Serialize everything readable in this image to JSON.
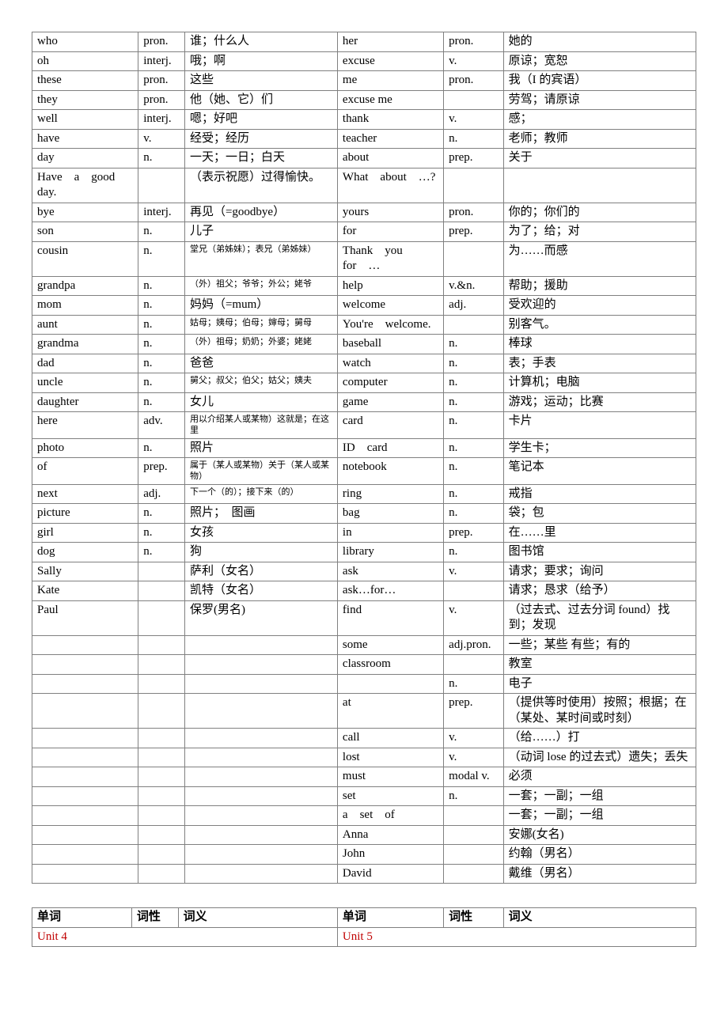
{
  "table1": {
    "rows": [
      {
        "wl": "who",
        "pl": "pron.",
        "dl": "谁；什么人",
        "wr": "her",
        "pr": "pron.",
        "dr": "她的"
      },
      {
        "wl": "oh",
        "pl": "interj.",
        "dl": "哦；啊",
        "wr": "excuse",
        "pr": "v.",
        "dr": "原谅；宽恕"
      },
      {
        "wl": "these",
        "pl": "pron.",
        "dl": "这些",
        "wr": "me",
        "pr": "pron.",
        "dr": "我（I 的宾语）"
      },
      {
        "wl": "they",
        "pl": "pron.",
        "dl": "他（她、它）们",
        "wr": "excuse me",
        "pr": "",
        "dr": "劳驾；请原谅"
      },
      {
        "wl": "well",
        "pl": "interj.",
        "dl": "嗯；好吧",
        "wr": "thank",
        "pr": "v.",
        "dr": "感；"
      },
      {
        "wl": "have",
        "pl": "v.",
        "dl": "经受；经历",
        "wr": "teacher",
        "pr": "n.",
        "dr": "老师；教师"
      },
      {
        "wl": "day",
        "pl": "n.",
        "dl": "一天；一日；白天",
        "wr": "about",
        "pr": "prep.",
        "dr": "关于"
      },
      {
        "wl": "Have　a　good　day.",
        "pl": "",
        "dl": "（表示祝愿）过得愉快。",
        "wr": "What　about　…?",
        "pr": "",
        "dr": ""
      },
      {
        "wl": "bye",
        "pl": "interj.",
        "dl": "再见（=goodbye）",
        "wr": "yours",
        "pr": "pron.",
        "dr": "你的；你们的"
      },
      {
        "wl": "son",
        "pl": "n.",
        "dl": "儿子",
        "wr": "for",
        "pr": "prep.",
        "dr": "为了；给；对"
      },
      {
        "wl": "cousin",
        "pl": "n.",
        "dl": "堂兄（弟姊妹）；表兄（弟姊妹）",
        "dl_small": true,
        "wr": "Thank　you　for　…",
        "pr": "",
        "dr": "为……而感"
      },
      {
        "wl": "grandpa",
        "pl": "n.",
        "dl": "（外）祖父；爷爷；外公；姥爷",
        "dl_small": true,
        "wr": "help",
        "pr": "v.&n.",
        "dr": "帮助；援助"
      },
      {
        "wl": "mom",
        "pl": "n.",
        "dl": "妈妈（=mum）",
        "wr": "welcome",
        "pr": "adj.",
        "dr": "受欢迎的"
      },
      {
        "wl": "aunt",
        "pl": "n.",
        "dl": "姑母；姨母；伯母；婶母；舅母",
        "dl_small": true,
        "wr": "You're　welcome.",
        "pr": "",
        "dr": "别客气。"
      },
      {
        "wl": "grandma",
        "pl": "n.",
        "dl": "（外）祖母；奶奶；外婆；姥姥",
        "dl_small": true,
        "wr": "baseball",
        "pr": "n.",
        "dr": "棒球"
      },
      {
        "wl": "dad",
        "pl": "n.",
        "dl": "爸爸",
        "wr": "watch",
        "pr": "n.",
        "dr": "表；手表"
      },
      {
        "wl": "uncle",
        "pl": "n.",
        "dl": "舅父；叔父；伯父；姑父；姨夫",
        "dl_small": true,
        "wr": "computer",
        "pr": "n.",
        "dr": "计算机；电脑"
      },
      {
        "wl": "daughter",
        "pl": "n.",
        "dl": "女儿",
        "wr": "game",
        "pr": "n.",
        "dr": "游戏；运动；比赛"
      },
      {
        "wl": "here",
        "pl": "adv.",
        "dl": "用以介绍某人或某物）这就是；在这里",
        "dl_small": true,
        "wr": "card",
        "pr": "n.",
        "dr": "卡片"
      },
      {
        "wl": "photo",
        "pl": "n.",
        "dl": "照片",
        "wr": "ID　card",
        "pr": "n.",
        "dr": "学生卡；"
      },
      {
        "wl": "of",
        "pl": "prep.",
        "dl": "属于（某人或某物）关于（某人或某物）",
        "dl_small": true,
        "wr": "notebook",
        "pr": "n.",
        "dr": "笔记本"
      },
      {
        "wl": "next",
        "pl": "adj.",
        "dl": "下一个（的）；接下来（的）",
        "dl_small": true,
        "wr": "ring",
        "pr": "n.",
        "dr": "戒指"
      },
      {
        "wl": "picture",
        "pl": "n.",
        "dl": "照片；　图画",
        "wr": "bag",
        "pr": "n.",
        "dr": "袋；包"
      },
      {
        "wl": "girl",
        "pl": "n.",
        "dl": "女孩",
        "wr": "in",
        "pr": "prep.",
        "dr": "在……里"
      },
      {
        "wl": "dog",
        "pl": "n.",
        "dl": "狗",
        "wr": "library",
        "pr": "n.",
        "dr": "图书馆"
      },
      {
        "wl": "Sally",
        "pl": "",
        "dl": "萨利（女名）",
        "wr": "ask",
        "pr": "v.",
        "dr": "请求；要求；询问"
      },
      {
        "wl": "Kate",
        "pl": "",
        "dl": "凯特（女名）",
        "wr": "ask…for…",
        "pr": "",
        "dr": "请求；恳求（给予）"
      },
      {
        "wl": "Paul",
        "pl": "",
        "dl": "保罗(男名)",
        "wr": "find",
        "pr": "v.",
        "dr": "（过去式、过去分词 found）找到；发现"
      },
      {
        "wl": "",
        "pl": "",
        "dl": "",
        "wr": "some",
        "pr": "adj.pron.",
        "dr": "一些；某些 有些；有的"
      },
      {
        "wl": "",
        "pl": "",
        "dl": "",
        "wr": "classroom",
        "pr": "",
        "dr": "教室"
      },
      {
        "wl": "",
        "pl": "",
        "dl": "",
        "wr": "",
        "pr": "n.",
        "dr": "电子"
      },
      {
        "wl": "",
        "pl": "",
        "dl": "",
        "wr": "at",
        "pr": "prep.",
        "dr": "（提供等时使用）按照；根据；在（某处、某时间或时刻）"
      },
      {
        "wl": "",
        "pl": "",
        "dl": "",
        "wr": "call",
        "pr": "v.",
        "dr": "（给……）打"
      },
      {
        "wl": "",
        "pl": "",
        "dl": "",
        "wr": "lost",
        "pr": "v.",
        "dr": "（动词 lose 的过去式）遗失；丢失"
      },
      {
        "wl": "",
        "pl": "",
        "dl": "",
        "wr": "must",
        "pr": "modal v.",
        "dr": "必须"
      },
      {
        "wl": "",
        "pl": "",
        "dl": "",
        "wr": "set",
        "pr": "n.",
        "dr": "一套；一副；一组"
      },
      {
        "wl": "",
        "pl": "",
        "dl": "",
        "wr": "a　set　of",
        "pr": "",
        "dr": "一套；一副；一组"
      },
      {
        "wl": "",
        "pl": "",
        "dl": "",
        "wr": "Anna",
        "pr": "",
        "dr": "安娜(女名)"
      },
      {
        "wl": "",
        "pl": "",
        "dl": "",
        "wr": "John",
        "pr": "",
        "dr": "约翰（男名）"
      },
      {
        "wl": "",
        "pl": "",
        "dl": "",
        "wr": "David",
        "pr": "",
        "dr": "戴维（男名）"
      }
    ]
  },
  "table2": {
    "header": {
      "wl": "单词",
      "pl": "词性",
      "dl": "词义",
      "wr": "单词",
      "pr": "词性",
      "dr": "词义"
    },
    "unit_row": {
      "wl": "Unit 4",
      "wr": "Unit 5"
    }
  }
}
